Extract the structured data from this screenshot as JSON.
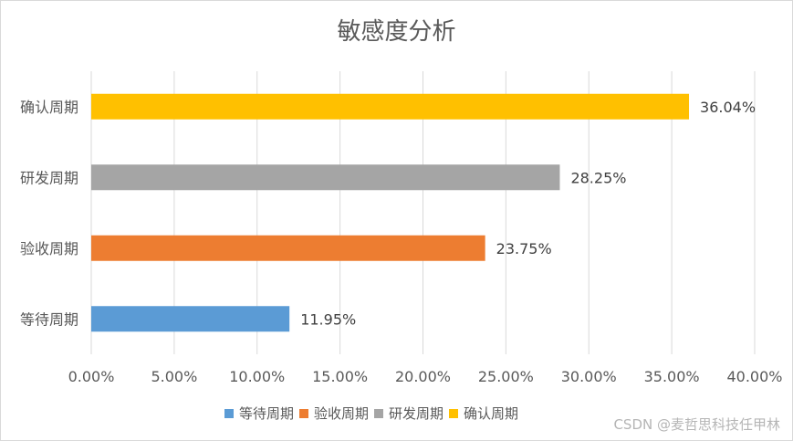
{
  "chart_data": {
    "type": "bar",
    "orientation": "horizontal",
    "title": "敏感度分析",
    "categories": [
      "确认周期",
      "研发周期",
      "验收周期",
      "等待周期"
    ],
    "values": [
      36.04,
      28.25,
      23.75,
      11.95
    ],
    "value_labels": [
      "36.04%",
      "28.25%",
      "23.75%",
      "11.95%"
    ],
    "colors": [
      "#FFC000",
      "#A5A5A5",
      "#ED7D31",
      "#5B9BD5"
    ],
    "xlim": [
      0,
      40
    ],
    "xticks": [
      0,
      5,
      10,
      15,
      20,
      25,
      30,
      35,
      40
    ],
    "xtick_labels": [
      "0.00%",
      "5.00%",
      "10.00%",
      "15.00%",
      "20.00%",
      "25.00%",
      "30.00%",
      "35.00%",
      "40.00%"
    ],
    "grid": true,
    "legend_position": "bottom",
    "legend": [
      {
        "label": "等待周期",
        "color": "#5B9BD5"
      },
      {
        "label": "验收周期",
        "color": "#ED7D31"
      },
      {
        "label": "研发周期",
        "color": "#A5A5A5"
      },
      {
        "label": "确认周期",
        "color": "#FFC000"
      }
    ]
  },
  "watermark": "CSDN @麦哲思科技任甲林"
}
